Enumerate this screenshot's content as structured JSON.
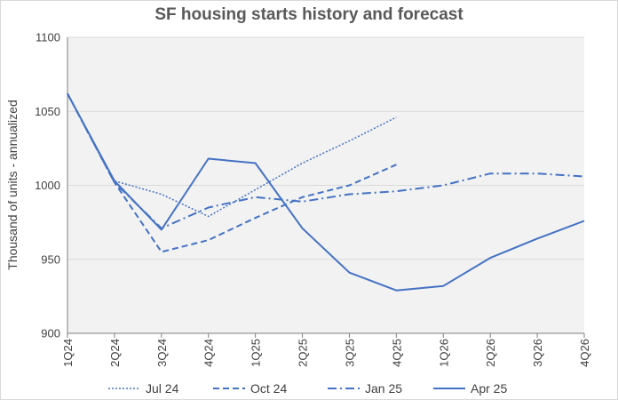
{
  "chart_data": {
    "type": "line",
    "title": "SF housing starts history and forecast",
    "xlabel": "",
    "ylabel": "Thousand of units - annualized",
    "categories": [
      "1Q24",
      "2Q24",
      "3Q24",
      "4Q24",
      "1Q25",
      "2Q25",
      "3Q25",
      "4Q25",
      "1Q26",
      "2Q26",
      "3Q26",
      "4Q26"
    ],
    "ylim": [
      900,
      1100
    ],
    "yticks": [
      900,
      950,
      1000,
      1050,
      1100
    ],
    "grid": true,
    "legend_position": "bottom",
    "series": [
      {
        "name": "Jul 24",
        "dash": "dotted",
        "values": [
          1062,
          1003,
          994,
          979,
          997,
          1015,
          1030,
          1046,
          null,
          null,
          null,
          null
        ]
      },
      {
        "name": "Oct 24",
        "dash": "dashed",
        "values": [
          1062,
          1002,
          955,
          963,
          978,
          992,
          1000,
          1014,
          null,
          null,
          null,
          null
        ]
      },
      {
        "name": "Jan 25",
        "dash": "dashdot",
        "values": [
          1062,
          1002,
          971,
          985,
          992,
          989,
          994,
          996,
          1000,
          1008,
          1008,
          1006
        ]
      },
      {
        "name": "Apr 25",
        "dash": "solid",
        "values": [
          1062,
          1003,
          970,
          1018,
          1015,
          971,
          941,
          929,
          932,
          951,
          964,
          976
        ]
      }
    ],
    "colors": {
      "line": "#4472c4",
      "plot_bg": "#f2f2f2",
      "grid": "#d9d9d9",
      "axis": "#7f7f7f"
    }
  }
}
